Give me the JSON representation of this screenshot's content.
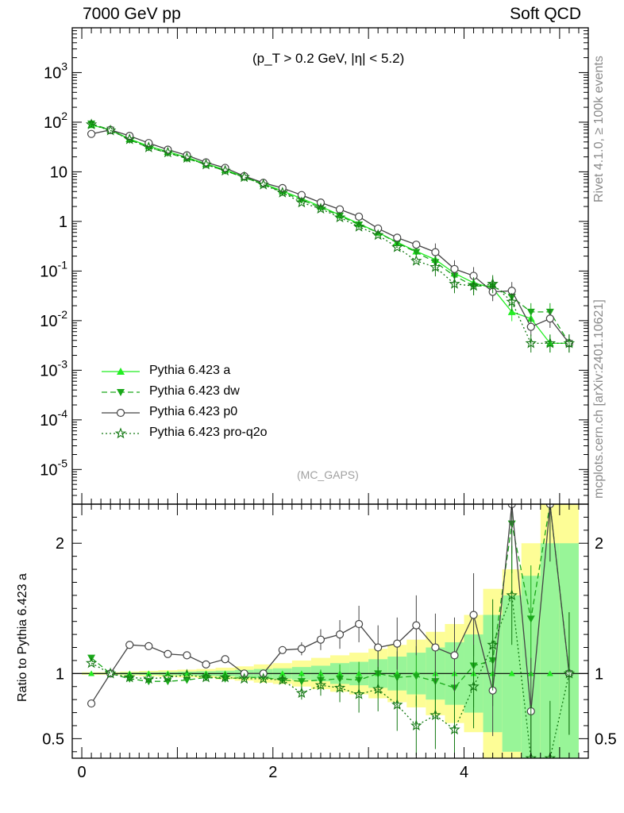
{
  "header": {
    "left": "7000 GeV pp",
    "right": "Soft QCD",
    "cut": "(p_T > 0.2 GeV, |η| < 5.2)",
    "watermark": "(MC_GAPS)",
    "rivet": "Rivet 4.1.0, ≥ 100k events",
    "mcplots": "mcplots.cern.ch [arXiv:2401.10621]"
  },
  "legend": [
    {
      "name": "Pythia 6.423 a",
      "color": "#22ee22",
      "dash": "",
      "marker": "triangle-up"
    },
    {
      "name": "Pythia 6.423 dw",
      "color": "#1aa81a",
      "dash": "7,4",
      "marker": "triangle-down"
    },
    {
      "name": "Pythia 6.423 p0",
      "color": "#444444",
      "dash": "",
      "marker": "circle"
    },
    {
      "name": "Pythia 6.423 pro-q2o",
      "color": "#117711",
      "dash": "2,3",
      "marker": "star"
    }
  ],
  "chart_data": {
    "type": "line",
    "x": [
      0.1,
      0.3,
      0.5,
      0.7,
      0.9,
      1.1,
      1.3,
      1.5,
      1.7,
      1.9,
      2.1,
      2.3,
      2.5,
      2.7,
      2.9,
      3.1,
      3.3,
      3.5,
      3.7,
      3.9,
      4.1,
      4.3,
      4.5,
      4.7,
      4.9,
      5.1
    ],
    "xlim": [
      -0.1,
      5.3
    ],
    "main": {
      "yscale": "log",
      "ylim": [
        2e-06,
        8000
      ],
      "yticks": [
        {
          "value": 1e-05,
          "label": "10^-5"
        },
        {
          "value": 0.0001,
          "label": "10^-4"
        },
        {
          "value": 0.001,
          "label": "10^-3"
        },
        {
          "value": 0.01,
          "label": "10^-2"
        },
        {
          "value": 0.1,
          "label": "10^-1"
        },
        {
          "value": 1,
          "label": "1"
        },
        {
          "value": 10,
          "label": "10"
        },
        {
          "value": 100,
          "label": "10^2"
        },
        {
          "value": 1000,
          "label": "10^3"
        }
      ]
    },
    "ratio": {
      "ylabel": "Ratio to Pythia 6.423 a",
      "ylim": [
        0.35,
        2.3
      ],
      "yticks": [
        {
          "value": 0.5,
          "label": "0.5"
        },
        {
          "value": 1,
          "label": "1"
        },
        {
          "value": 2,
          "label": "2"
        }
      ]
    },
    "xticks": [
      {
        "value": 0,
        "label": "0"
      },
      {
        "value": 2,
        "label": "2"
      },
      {
        "value": 4,
        "label": "4"
      }
    ],
    "series": [
      {
        "name": "Pythia 6.423 a",
        "values": [
          88,
          70,
          46,
          33,
          25.5,
          19.5,
          14.5,
          11,
          8,
          5.8,
          4.1,
          2.9,
          2.0,
          1.35,
          0.9,
          0.6,
          0.38,
          0.25,
          0.17,
          0.09,
          0.058,
          0.045,
          0.015,
          0.011,
          0.0035,
          0.0035
        ],
        "ratio": [
          1.0,
          1.0,
          1.0,
          1.0,
          1.0,
          1.0,
          1.0,
          1.0,
          1.0,
          1.0,
          1.0,
          1.0,
          1.0,
          1.0,
          1.0,
          1.0,
          1.0,
          1.0,
          1.0,
          1.0,
          1.0,
          1.0,
          1.0,
          1.0,
          1.0,
          1.0
        ],
        "band_inner": [
          0.005,
          0.005,
          0.008,
          0.01,
          0.012,
          0.015,
          0.018,
          0.022,
          0.028,
          0.035,
          0.04,
          0.05,
          0.06,
          0.08,
          0.09,
          0.11,
          0.13,
          0.16,
          0.2,
          0.24,
          0.3,
          0.45,
          0.6,
          0.75,
          1.0,
          1.0
        ],
        "band_outer": [
          0.01,
          0.01,
          0.015,
          0.02,
          0.025,
          0.03,
          0.035,
          0.045,
          0.055,
          0.07,
          0.08,
          0.1,
          0.12,
          0.14,
          0.16,
          0.19,
          0.22,
          0.26,
          0.32,
          0.38,
          0.45,
          0.65,
          0.8,
          1.0,
          1.3,
          1.3
        ]
      },
      {
        "name": "Pythia 6.423 dw",
        "values": [
          93,
          70,
          44,
          31,
          24,
          18.5,
          14,
          10.5,
          7.7,
          5.6,
          3.9,
          2.7,
          1.9,
          1.3,
          0.86,
          0.6,
          0.37,
          0.24,
          0.15,
          0.08,
          0.05,
          0.05,
          0.03,
          0.015,
          0.015,
          0.0035
        ],
        "ratio": [
          1.12,
          1.0,
          0.96,
          0.94,
          0.94,
          0.95,
          0.97,
          0.96,
          0.97,
          0.97,
          0.95,
          0.94,
          0.95,
          0.96,
          0.95,
          1.0,
          0.97,
          0.98,
          0.94,
          0.89,
          1.06,
          1.1,
          2.15,
          1.42,
          2.3,
          1.0
        ]
      },
      {
        "name": "Pythia 6.423 p0",
        "values": [
          58,
          70,
          53,
          38,
          28,
          21.5,
          15.5,
          12,
          8.2,
          6.0,
          4.7,
          3.4,
          2.4,
          1.75,
          1.25,
          0.72,
          0.47,
          0.34,
          0.24,
          0.11,
          0.08,
          0.038,
          0.04,
          0.0075,
          0.011,
          0.0035
        ],
        "ratio": [
          0.77,
          1.0,
          1.22,
          1.21,
          1.15,
          1.14,
          1.07,
          1.11,
          1.0,
          1.0,
          1.18,
          1.19,
          1.26,
          1.3,
          1.38,
          1.2,
          1.23,
          1.37,
          1.2,
          1.14,
          1.45,
          0.87,
          2.3,
          0.71,
          2.3,
          1.0
        ]
      },
      {
        "name": "Pythia 6.423 pro-q2o",
        "values": [
          90,
          68,
          45,
          31,
          24.5,
          19,
          14,
          10.5,
          7.8,
          5.5,
          3.8,
          2.4,
          1.8,
          1.2,
          0.78,
          0.53,
          0.3,
          0.16,
          0.12,
          0.055,
          0.05,
          0.055,
          0.024,
          0.0035,
          0.0035,
          0.0035
        ],
        "ratio": [
          1.08,
          1.0,
          0.97,
          0.96,
          0.97,
          0.99,
          0.97,
          0.97,
          0.96,
          0.96,
          0.95,
          0.85,
          0.91,
          0.89,
          0.84,
          0.88,
          0.76,
          0.6,
          0.68,
          0.57,
          0.9,
          1.22,
          1.6,
          0.35,
          0.35,
          1.0
        ]
      }
    ]
  }
}
